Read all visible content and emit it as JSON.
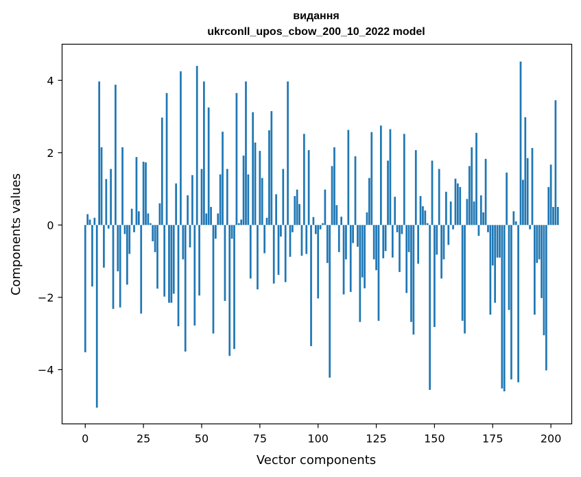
{
  "chart_data": {
    "type": "bar",
    "title": "видання",
    "subtitle": "ukrconll_upos_cbow_200_10_2022 model",
    "xlabel": "Vector components",
    "ylabel": "Components values",
    "xlim": [
      -9.95,
      208.95
    ],
    "ylim": [
      -5.5,
      5.0
    ],
    "xticks": [
      0,
      25,
      50,
      75,
      100,
      125,
      150,
      175,
      200
    ],
    "yticks": [
      -4,
      -2,
      0,
      2,
      4
    ],
    "ytick_labels": [
      "−4",
      "−2",
      "0",
      "2",
      "4"
    ],
    "grid": false,
    "bar_color": "#1f77b4",
    "values": [
      -3.52,
      0.3,
      0.15,
      -1.7,
      0.2,
      -5.05,
      3.97,
      2.15,
      -1.18,
      1.27,
      -0.1,
      1.55,
      -2.32,
      3.88,
      -1.28,
      -2.28,
      2.15,
      -0.25,
      -1.65,
      -0.8,
      0.45,
      -0.2,
      1.88,
      0.38,
      -2.45,
      1.75,
      1.73,
      0.32,
      0.05,
      -0.45,
      -0.75,
      -1.76,
      0.6,
      2.97,
      -1.98,
      3.65,
      -2.15,
      -2.15,
      -1.9,
      1.15,
      -2.8,
      4.25,
      -0.95,
      -3.5,
      0.82,
      -0.62,
      1.38,
      -2.78,
      4.4,
      -1.95,
      1.55,
      3.97,
      0.32,
      3.25,
      0.5,
      -3.0,
      -0.38,
      0.32,
      1.4,
      2.58,
      -2.1,
      1.55,
      -3.62,
      -0.38,
      -3.43,
      3.65,
      0.05,
      0.15,
      1.92,
      3.97,
      1.4,
      -1.48,
      3.12,
      2.28,
      -1.78,
      2.05,
      1.3,
      -0.78,
      0.2,
      2.62,
      3.15,
      -1.62,
      0.85,
      -1.38,
      -0.32,
      1.55,
      -1.58,
      3.97,
      -0.88,
      -0.2,
      0.8,
      0.98,
      0.58,
      -0.85,
      2.52,
      -0.8,
      2.07,
      -3.35,
      0.22,
      -0.25,
      -2.03,
      -0.12,
      0.05,
      0.98,
      -1.05,
      -4.22,
      1.63,
      2.15,
      0.55,
      -0.75,
      0.23,
      -1.92,
      -0.95,
      2.63,
      -1.85,
      -0.5,
      1.9,
      -0.6,
      -2.68,
      -1.45,
      -1.75,
      0.35,
      1.3,
      2.57,
      -0.95,
      -1.25,
      -2.65,
      2.75,
      -0.92,
      -0.72,
      1.78,
      2.65,
      -0.9,
      0.78,
      -0.2,
      -1.3,
      -0.25,
      2.52,
      -1.88,
      -0.75,
      -2.68,
      -3.03,
      2.07,
      -1.07,
      0.8,
      0.52,
      0.4,
      0.05,
      -4.56,
      1.78,
      -2.82,
      -0.82,
      1.55,
      -1.48,
      -0.95,
      0.92,
      -0.55,
      0.65,
      -0.12,
      1.28,
      1.15,
      1.05,
      -2.65,
      -3.0,
      0.72,
      1.63,
      2.15,
      0.65,
      2.55,
      -0.3,
      0.82,
      0.35,
      1.83,
      -0.2,
      -2.48,
      -1.12,
      -2.15,
      -0.9,
      -0.9,
      -4.52,
      -4.6,
      1.45,
      -2.35,
      -4.27,
      0.38,
      0.1,
      -4.35,
      4.52,
      1.25,
      2.98,
      1.85,
      -0.12,
      2.13,
      -2.48,
      -1.05,
      -0.95,
      -2.02,
      -3.05,
      -4.02,
      1.05,
      1.67,
      0.5,
      3.45,
      0.5
    ]
  }
}
